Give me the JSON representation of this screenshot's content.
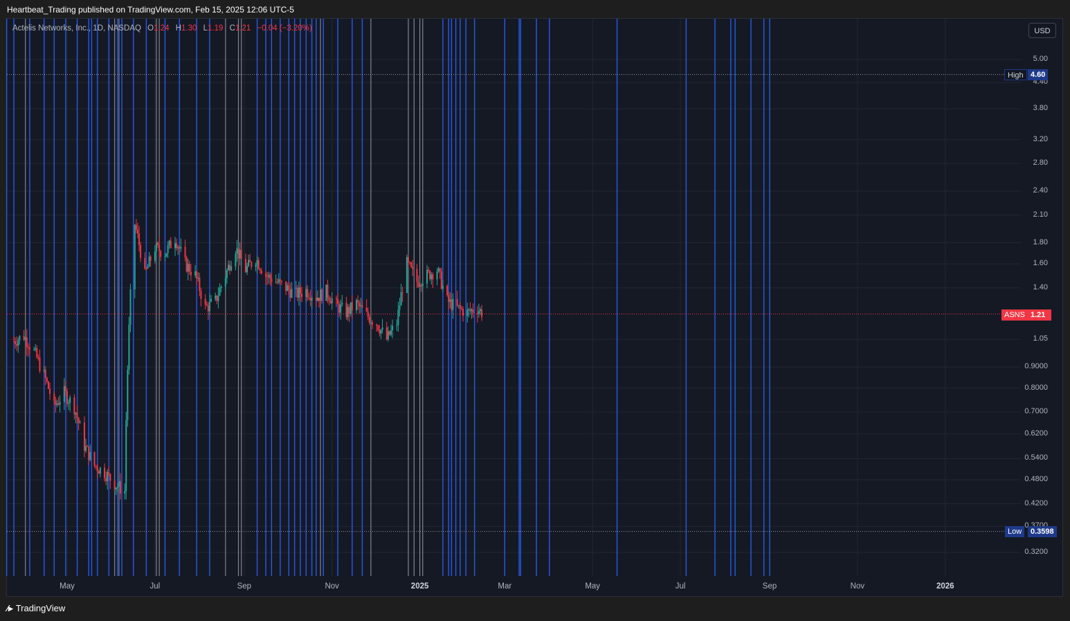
{
  "header": {
    "publisher_line": "Heartbeat_Trading published on TradingView.com, Feb 15, 2025 12:06 UTC-5"
  },
  "legend": {
    "symbol": "Actelis Networks, Inc., 1D, NASDAQ",
    "o_label": "O",
    "o_value": "1.24",
    "h_label": "H",
    "h_value": "1.30",
    "l_label": "L",
    "l_value": "1.19",
    "c_label": "C",
    "c_value": "1.21",
    "change": "−0.04 (−3.20%)"
  },
  "currency_button": "USD",
  "price_tags": {
    "high_label": "High",
    "high_value": "4.60",
    "last_label": "ASNS",
    "last_value": "1.21",
    "low_label": "Low",
    "low_value": "0.3598"
  },
  "footer": {
    "brand": "TradingView"
  },
  "colors": {
    "up": "#26a69a",
    "down": "#f23645",
    "vline_blue": "#2962ff",
    "vline_gray": "#9598a1",
    "background": "#151924"
  },
  "chart_data": {
    "type": "candlestick",
    "title": "Actelis Networks, Inc., 1D, NASDAQ",
    "y_scale": "log",
    "y_ticks": [
      "5.00",
      "4.40",
      "3.80",
      "3.20",
      "2.80",
      "2.40",
      "2.10",
      "1.80",
      "1.60",
      "1.40",
      "1.05",
      "0.9000",
      "0.8000",
      "0.7000",
      "0.6200",
      "0.5400",
      "0.4800",
      "0.4200",
      "0.3700",
      "0.3200"
    ],
    "y_tick_values": [
      5.0,
      4.4,
      3.8,
      3.2,
      2.8,
      2.4,
      2.1,
      1.8,
      1.6,
      1.4,
      1.05,
      0.9,
      0.8,
      0.7,
      0.62,
      0.54,
      0.48,
      0.42,
      0.37,
      0.32
    ],
    "x_ticks": [
      {
        "label": "May",
        "bold": false,
        "date": "2024-05-01"
      },
      {
        "label": "Jul",
        "bold": false,
        "date": "2024-07-01"
      },
      {
        "label": "Sep",
        "bold": false,
        "date": "2024-09-01"
      },
      {
        "label": "Nov",
        "bold": false,
        "date": "2024-11-01"
      },
      {
        "label": "2025",
        "bold": true,
        "date": "2025-01-01"
      },
      {
        "label": "Mar",
        "bold": false,
        "date": "2025-03-01"
      },
      {
        "label": "May",
        "bold": false,
        "date": "2025-05-01"
      },
      {
        "label": "Jul",
        "bold": false,
        "date": "2025-07-01"
      },
      {
        "label": "Sep",
        "bold": false,
        "date": "2025-09-01"
      },
      {
        "label": "Nov",
        "bold": false,
        "date": "2025-11-01"
      },
      {
        "label": "2026",
        "bold": true,
        "date": "2026-01-01"
      }
    ],
    "close_series": [
      [
        "2024-03-25",
        1.04
      ],
      [
        "2024-04-01",
        1.07
      ],
      [
        "2024-04-08",
        0.98
      ],
      [
        "2024-04-15",
        0.86
      ],
      [
        "2024-04-22",
        0.72
      ],
      [
        "2024-04-29",
        0.78
      ],
      [
        "2024-05-06",
        0.72
      ],
      [
        "2024-05-13",
        0.58
      ],
      [
        "2024-05-20",
        0.52
      ],
      [
        "2024-05-27",
        0.5
      ],
      [
        "2024-06-03",
        0.47
      ],
      [
        "2024-06-10",
        0.45
      ],
      [
        "2024-06-17",
        2.0
      ],
      [
        "2024-06-24",
        1.5
      ],
      [
        "2024-07-01",
        1.75
      ],
      [
        "2024-07-08",
        1.7
      ],
      [
        "2024-07-15",
        1.85
      ],
      [
        "2024-07-22",
        1.6
      ],
      [
        "2024-07-29",
        1.5
      ],
      [
        "2024-08-05",
        1.25
      ],
      [
        "2024-08-12",
        1.3
      ],
      [
        "2024-08-19",
        1.5
      ],
      [
        "2024-08-26",
        1.75
      ],
      [
        "2024-09-02",
        1.55
      ],
      [
        "2024-09-09",
        1.65
      ],
      [
        "2024-09-16",
        1.5
      ],
      [
        "2024-09-23",
        1.45
      ],
      [
        "2024-09-30",
        1.4
      ],
      [
        "2024-10-07",
        1.35
      ],
      [
        "2024-10-14",
        1.38
      ],
      [
        "2024-10-21",
        1.33
      ],
      [
        "2024-10-28",
        1.37
      ],
      [
        "2024-11-04",
        1.27
      ],
      [
        "2024-11-11",
        1.22
      ],
      [
        "2024-11-18",
        1.28
      ],
      [
        "2024-11-25",
        1.2
      ],
      [
        "2024-12-02",
        1.15
      ],
      [
        "2024-12-09",
        1.05
      ],
      [
        "2024-12-16",
        1.15
      ],
      [
        "2024-12-23",
        1.6
      ],
      [
        "2024-12-30",
        1.45
      ],
      [
        "2025-01-06",
        1.5
      ],
      [
        "2025-01-13",
        1.55
      ],
      [
        "2025-01-20",
        1.3
      ],
      [
        "2025-01-27",
        1.25
      ],
      [
        "2025-02-03",
        1.22
      ],
      [
        "2025-02-10",
        1.25
      ],
      [
        "2025-02-14",
        1.21
      ]
    ],
    "high": 4.6,
    "low": 0.3598,
    "last": 1.21,
    "vertical_markers_blue": [
      "2024-03-20",
      "2024-03-25",
      "2024-04-05",
      "2024-04-15",
      "2024-04-22",
      "2024-04-30",
      "2024-05-08",
      "2024-05-16",
      "2024-05-18",
      "2024-05-22",
      "2024-05-30",
      "2024-06-05",
      "2024-06-08",
      "2024-06-16",
      "2024-06-25",
      "2024-07-08",
      "2024-07-18",
      "2024-07-30",
      "2024-08-08",
      "2024-09-10",
      "2024-09-16",
      "2024-09-20",
      "2024-09-26",
      "2024-10-02",
      "2024-10-06",
      "2024-10-10",
      "2024-10-14",
      "2024-10-18",
      "2024-10-21",
      "2024-10-26",
      "2024-11-05",
      "2024-11-15",
      "2024-11-22",
      "2025-01-17",
      "2025-01-21",
      "2025-01-23",
      "2025-01-26",
      "2025-01-29",
      "2025-02-02",
      "2025-02-08",
      "2025-03-01",
      "2025-03-11",
      "2025-03-12",
      "2025-03-23",
      "2025-04-01",
      "2025-05-18",
      "2025-07-05",
      "2025-07-25",
      "2025-08-05",
      "2025-08-08",
      "2025-08-19",
      "2025-08-28",
      "2025-09-01"
    ],
    "vertical_markers_gray": [
      "2024-04-02",
      "2024-06-03",
      "2024-06-06",
      "2024-07-02",
      "2024-07-04",
      "2024-08-19",
      "2024-08-28",
      "2024-08-30",
      "2024-10-24",
      "2024-11-28",
      "2024-12-24",
      "2024-12-28",
      "2025-01-01",
      "2025-01-03"
    ]
  }
}
